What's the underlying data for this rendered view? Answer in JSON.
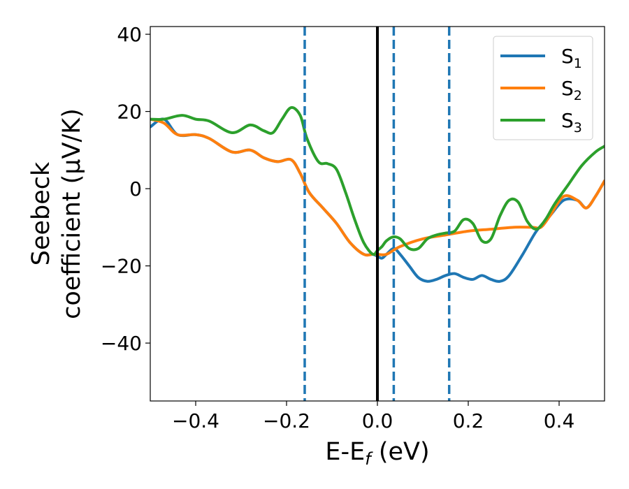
{
  "chart_data": {
    "type": "line",
    "xlabel": {
      "main": "E-E",
      "sub": "f",
      "suffix": " (eV)"
    },
    "ylabel": {
      "line1": "Seebeck",
      "line2": "coefficient  (μV/K)"
    },
    "xlim": [
      -0.5,
      0.5
    ],
    "ylim": [
      -55,
      42
    ],
    "xticks": [
      -0.4,
      -0.2,
      0.0,
      0.2,
      0.4
    ],
    "xtick_labels": [
      "−0.4",
      "−0.2",
      "0.0",
      "0.2",
      "0.4"
    ],
    "yticks": [
      40,
      20,
      0,
      -20,
      -40
    ],
    "ytick_labels": [
      "40",
      "20",
      "0",
      "−20",
      "−40"
    ],
    "legend_position": "top-right",
    "grid": false,
    "reference_lines": [
      {
        "x": 0.0,
        "style": "solid",
        "color": "#000000"
      },
      {
        "x": -0.16,
        "style": "dashed",
        "color": "#1f77b4"
      },
      {
        "x": 0.036,
        "style": "dashed",
        "color": "#1f77b4"
      },
      {
        "x": 0.158,
        "style": "dashed",
        "color": "#1f77b4"
      }
    ],
    "series": [
      {
        "name": "S",
        "sub": "1",
        "color": "#1f77b4",
        "points": [
          [
            -0.5,
            16
          ],
          [
            -0.47,
            18
          ],
          [
            -0.44,
            14
          ],
          [
            -0.4,
            14
          ],
          [
            -0.37,
            13
          ],
          [
            -0.32,
            9.5
          ],
          [
            -0.28,
            10
          ],
          [
            -0.25,
            8
          ],
          [
            -0.22,
            7
          ],
          [
            -0.19,
            7.5
          ],
          [
            -0.17,
            4
          ],
          [
            -0.15,
            -1
          ],
          [
            -0.12,
            -5
          ],
          [
            -0.09,
            -9
          ],
          [
            -0.06,
            -14
          ],
          [
            -0.03,
            -17
          ],
          [
            -0.01,
            -17
          ],
          [
            0.0,
            -17.5
          ],
          [
            0.01,
            -18
          ],
          [
            0.02,
            -17
          ],
          [
            0.036,
            -15.5
          ],
          [
            0.05,
            -17
          ],
          [
            0.07,
            -20
          ],
          [
            0.09,
            -23
          ],
          [
            0.11,
            -24
          ],
          [
            0.13,
            -23.5
          ],
          [
            0.15,
            -22.5
          ],
          [
            0.17,
            -22
          ],
          [
            0.19,
            -23
          ],
          [
            0.21,
            -23.5
          ],
          [
            0.23,
            -22.5
          ],
          [
            0.25,
            -23.5
          ],
          [
            0.27,
            -24
          ],
          [
            0.29,
            -22.5
          ],
          [
            0.32,
            -17
          ],
          [
            0.35,
            -11
          ],
          [
            0.38,
            -7
          ],
          [
            0.41,
            -3
          ],
          [
            0.44,
            -3
          ],
          [
            0.46,
            -5
          ],
          [
            0.48,
            -2
          ],
          [
            0.5,
            2
          ]
        ]
      },
      {
        "name": "S",
        "sub": "2",
        "color": "#ff7f0e",
        "points": [
          [
            -0.5,
            18
          ],
          [
            -0.47,
            17
          ],
          [
            -0.44,
            14
          ],
          [
            -0.4,
            14
          ],
          [
            -0.37,
            13
          ],
          [
            -0.32,
            9.5
          ],
          [
            -0.28,
            10
          ],
          [
            -0.25,
            8
          ],
          [
            -0.22,
            7
          ],
          [
            -0.19,
            7.5
          ],
          [
            -0.17,
            4
          ],
          [
            -0.15,
            -1
          ],
          [
            -0.12,
            -5
          ],
          [
            -0.09,
            -9
          ],
          [
            -0.06,
            -14
          ],
          [
            -0.03,
            -17
          ],
          [
            -0.01,
            -17
          ],
          [
            0.0,
            -17
          ],
          [
            0.02,
            -17
          ],
          [
            0.05,
            -15
          ],
          [
            0.1,
            -13
          ],
          [
            0.15,
            -12
          ],
          [
            0.2,
            -11
          ],
          [
            0.25,
            -10.5
          ],
          [
            0.3,
            -10
          ],
          [
            0.34,
            -10
          ],
          [
            0.36,
            -10
          ],
          [
            0.38,
            -7
          ],
          [
            0.41,
            -2
          ],
          [
            0.44,
            -3
          ],
          [
            0.46,
            -5
          ],
          [
            0.48,
            -2
          ],
          [
            0.5,
            2
          ]
        ]
      },
      {
        "name": "S",
        "sub": "3",
        "color": "#2ca02c",
        "points": [
          [
            -0.5,
            18
          ],
          [
            -0.47,
            18
          ],
          [
            -0.43,
            19
          ],
          [
            -0.4,
            18
          ],
          [
            -0.37,
            17.5
          ],
          [
            -0.32,
            14.5
          ],
          [
            -0.28,
            16.5
          ],
          [
            -0.25,
            15
          ],
          [
            -0.23,
            14.5
          ],
          [
            -0.21,
            18
          ],
          [
            -0.19,
            21
          ],
          [
            -0.17,
            19
          ],
          [
            -0.155,
            13
          ],
          [
            -0.13,
            7
          ],
          [
            -0.11,
            6.5
          ],
          [
            -0.09,
            5
          ],
          [
            -0.07,
            -1
          ],
          [
            -0.05,
            -8
          ],
          [
            -0.03,
            -14
          ],
          [
            -0.01,
            -17
          ],
          [
            0.0,
            -16
          ],
          [
            0.01,
            -15
          ],
          [
            0.02,
            -13.5
          ],
          [
            0.035,
            -12.5
          ],
          [
            0.05,
            -13
          ],
          [
            0.07,
            -15.5
          ],
          [
            0.09,
            -15.5
          ],
          [
            0.11,
            -13
          ],
          [
            0.13,
            -12
          ],
          [
            0.15,
            -11.5
          ],
          [
            0.17,
            -11
          ],
          [
            0.19,
            -8
          ],
          [
            0.21,
            -9
          ],
          [
            0.23,
            -13.5
          ],
          [
            0.25,
            -13
          ],
          [
            0.27,
            -7
          ],
          [
            0.29,
            -3
          ],
          [
            0.31,
            -3.5
          ],
          [
            0.33,
            -8.5
          ],
          [
            0.35,
            -10.5
          ],
          [
            0.37,
            -8
          ],
          [
            0.39,
            -4
          ],
          [
            0.42,
            1
          ],
          [
            0.45,
            6
          ],
          [
            0.48,
            9.5
          ],
          [
            0.5,
            11
          ]
        ]
      }
    ]
  }
}
